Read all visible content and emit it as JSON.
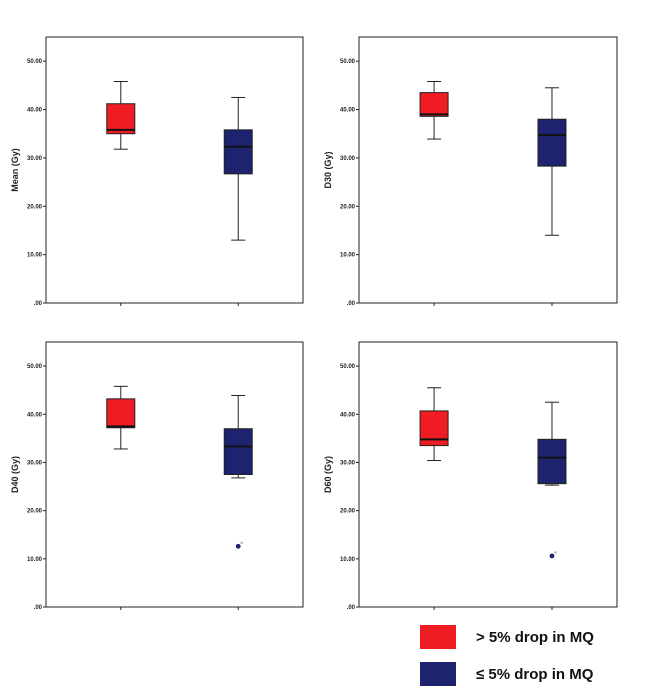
{
  "chart_data": [
    {
      "type": "box",
      "ylabel": "Mean (Gy)",
      "ylim": [
        0,
        55
      ],
      "yticks": [
        ".00",
        "10.00",
        "20.00",
        "30.00",
        "40.00",
        "50.00"
      ],
      "groups": [
        {
          "legend": "> 5% drop in MQ",
          "color": "#ef1c24",
          "min": 31.8,
          "q1": 35.0,
          "median": 35.8,
          "q3": 41.2,
          "max": 45.8,
          "outliers": []
        },
        {
          "legend": "≤ 5% drop in MQ",
          "color": "#1e2370",
          "min": 13.0,
          "q1": 26.7,
          "median": 32.3,
          "q3": 35.8,
          "max": 42.5,
          "outliers": []
        }
      ]
    },
    {
      "type": "box",
      "ylabel": "D30 (Gy)",
      "ylim": [
        0,
        55
      ],
      "yticks": [
        ".00",
        "10.00",
        "20.00",
        "30.00",
        "40.00",
        "50.00"
      ],
      "groups": [
        {
          "legend": "> 5% drop in MQ",
          "color": "#ef1c24",
          "min": 33.9,
          "q1": 38.6,
          "median": 39.0,
          "q3": 43.5,
          "max": 45.8,
          "outliers": []
        },
        {
          "legend": "≤ 5% drop in MQ",
          "color": "#1e2370",
          "min": 14.0,
          "q1": 28.3,
          "median": 34.7,
          "q3": 38.0,
          "max": 44.5,
          "outliers": []
        }
      ]
    },
    {
      "type": "box",
      "ylabel": "D40 (Gy)",
      "ylim": [
        0,
        55
      ],
      "yticks": [
        ".00",
        "10.00",
        "20.00",
        "30.00",
        "40.00",
        "50.00"
      ],
      "groups": [
        {
          "legend": "> 5% drop in MQ",
          "color": "#ef1c24",
          "min": 32.8,
          "q1": 37.2,
          "median": 37.5,
          "q3": 43.2,
          "max": 45.8,
          "outliers": []
        },
        {
          "legend": "≤ 5% drop in MQ",
          "color": "#1e2370",
          "min": 26.8,
          "q1": 27.5,
          "median": 33.3,
          "q3": 37.0,
          "max": 43.9,
          "outliers": [
            12.6
          ]
        }
      ]
    },
    {
      "type": "box",
      "ylabel": "D60 (Gy)",
      "ylim": [
        0,
        55
      ],
      "yticks": [
        ".00",
        "10.00",
        "20.00",
        "30.00",
        "40.00",
        "50.00"
      ],
      "groups": [
        {
          "legend": "> 5% drop in MQ",
          "color": "#ef1c24",
          "min": 30.4,
          "q1": 33.5,
          "median": 34.8,
          "q3": 40.7,
          "max": 45.5,
          "outliers": []
        },
        {
          "legend": "≤ 5% drop in MQ",
          "color": "#1e2370",
          "min": 25.3,
          "q1": 25.6,
          "median": 31.0,
          "q3": 34.8,
          "max": 42.5,
          "outliers": [
            10.6
          ]
        }
      ]
    }
  ],
  "legend": [
    {
      "label": "> 5% drop in MQ",
      "color": "#ef1c24"
    },
    {
      "label": "≤ 5% drop in MQ",
      "color": "#1e2370"
    }
  ]
}
